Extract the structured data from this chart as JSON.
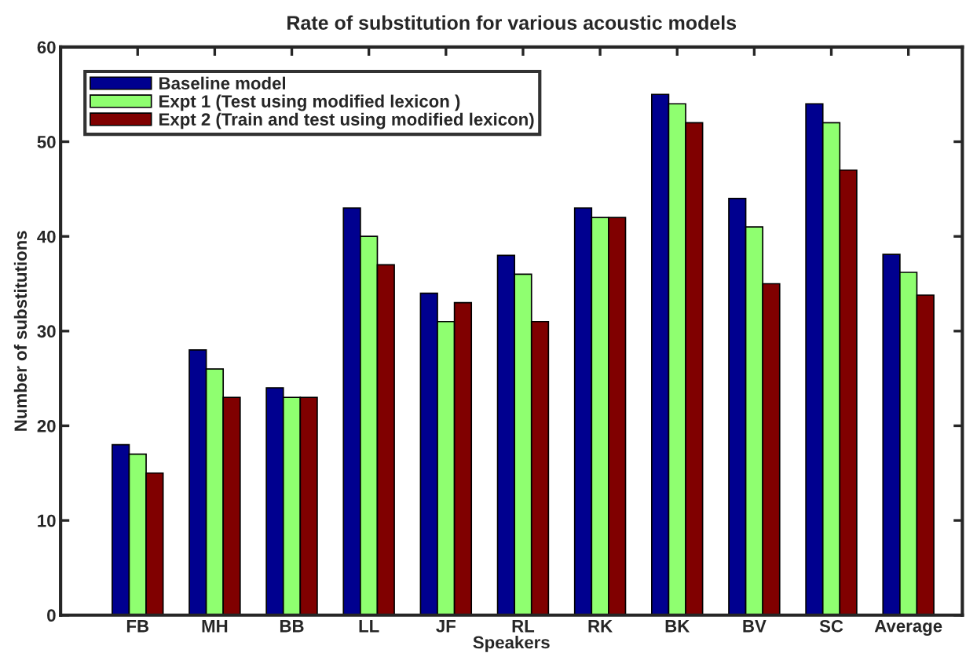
{
  "chart_data": {
    "type": "bar",
    "title": "Rate of substitution for various acoustic models",
    "xlabel": "Speakers",
    "ylabel": "Number of substitutions",
    "categories": [
      "FB",
      "MH",
      "BB",
      "LL",
      "JF",
      "RL",
      "RK",
      "BK",
      "BV",
      "SC",
      "Average"
    ],
    "series": [
      {
        "name": "Baseline model",
        "color": "#00008f",
        "values": [
          18,
          28,
          24,
          43,
          34,
          38,
          43,
          55,
          44,
          54,
          38.1
        ]
      },
      {
        "name": "Expt 1 (Test using modified lexicon )",
        "color": "#8fff70",
        "values": [
          17,
          26,
          23,
          40,
          31,
          36,
          42,
          54,
          41,
          52,
          36.2
        ]
      },
      {
        "name": "Expt 2 (Train and test using modified lexicon)",
        "color": "#800000",
        "values": [
          15,
          23,
          23,
          37,
          33,
          31,
          42,
          52,
          35,
          47,
          33.8
        ]
      }
    ],
    "ylim": [
      0,
      60
    ],
    "yticks": [
      0,
      10,
      20,
      30,
      40,
      50,
      60
    ],
    "grid": false,
    "legend": "top left"
  }
}
